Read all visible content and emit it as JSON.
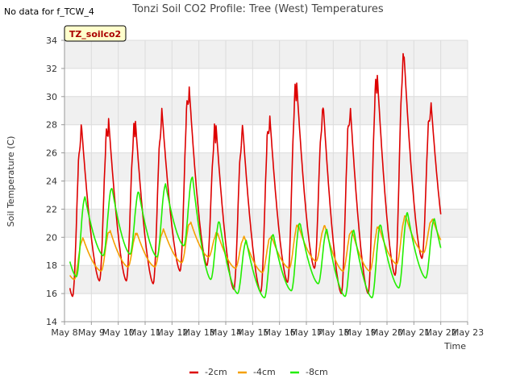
{
  "chart_data": {
    "type": "line",
    "title": "Tonzi Soil CO2 Profile: Tree (West) Temperatures",
    "no_data_note": "No data for f_TCW_4",
    "site_label": "TZ_soilco2",
    "xlabel": "Time",
    "ylabel": "Soil Temperature (C)",
    "xlim": [
      8,
      23
    ],
    "ylim": [
      14,
      34
    ],
    "x_ticks": [
      8,
      9,
      10,
      11,
      12,
      13,
      14,
      15,
      16,
      17,
      18,
      19,
      20,
      21,
      22,
      23
    ],
    "x_tick_labels": [
      "May 8",
      "May 9",
      "May 10",
      "May 11",
      "May 12",
      "May 13",
      "May 14",
      "May 15",
      "May 16",
      "May 17",
      "May 18",
      "May 19",
      "May 20",
      "May 21",
      "May 22",
      "May 23"
    ],
    "y_ticks": [
      14,
      16,
      18,
      20,
      22,
      24,
      26,
      28,
      30,
      32,
      34
    ],
    "y_tick_labels": [
      "14",
      "16",
      "18",
      "20",
      "22",
      "24",
      "26",
      "28",
      "30",
      "32",
      "34"
    ],
    "grid": true,
    "legend_position": "bottom",
    "series": [
      {
        "name": "-2cm",
        "color": "#dd0000",
        "days": [
          {
            "min": 15.8,
            "max": 28.3
          },
          {
            "min": 16.9,
            "max": 29.0
          },
          {
            "min": 16.9,
            "max": 28.8
          },
          {
            "min": 16.7,
            "max": 29.2
          },
          {
            "min": 17.6,
            "max": 31.3
          },
          {
            "min": 18.0,
            "max": 28.5
          },
          {
            "min": 16.3,
            "max": 28.2
          },
          {
            "min": 16.1,
            "max": 29.2
          },
          {
            "min": 16.8,
            "max": 31.6
          },
          {
            "min": 17.8,
            "max": 29.7
          },
          {
            "min": 16.0,
            "max": 29.8
          },
          {
            "min": 16.0,
            "max": 32.2
          },
          {
            "min": 17.3,
            "max": 33.5
          },
          {
            "min": 18.5,
            "max": 30.1
          }
        ]
      },
      {
        "name": "-4cm",
        "color": "#f5a000",
        "days": [
          {
            "min": 17.0,
            "max": 20.0
          },
          {
            "min": 17.6,
            "max": 20.6
          },
          {
            "min": 17.9,
            "max": 20.4
          },
          {
            "min": 17.9,
            "max": 20.6
          },
          {
            "min": 18.2,
            "max": 21.2
          },
          {
            "min": 18.6,
            "max": 20.4
          },
          {
            "min": 17.8,
            "max": 20.1
          },
          {
            "min": 17.5,
            "max": 20.2
          },
          {
            "min": 17.8,
            "max": 21.0
          },
          {
            "min": 18.3,
            "max": 20.9
          },
          {
            "min": 17.6,
            "max": 20.6
          },
          {
            "min": 17.6,
            "max": 20.9
          },
          {
            "min": 18.1,
            "max": 21.6
          },
          {
            "min": 18.9,
            "max": 21.4
          }
        ]
      },
      {
        "name": "-8cm",
        "color": "#22ee00",
        "days": [
          {
            "min": 17.2,
            "max": 22.9
          },
          {
            "min": 18.7,
            "max": 23.6
          },
          {
            "min": 18.8,
            "max": 23.3
          },
          {
            "min": 18.6,
            "max": 23.8
          },
          {
            "min": 19.4,
            "max": 24.4
          },
          {
            "min": 17.0,
            "max": 21.2
          },
          {
            "min": 16.0,
            "max": 19.8
          },
          {
            "min": 15.7,
            "max": 20.3
          },
          {
            "min": 16.2,
            "max": 21.1
          },
          {
            "min": 16.7,
            "max": 20.6
          },
          {
            "min": 15.8,
            "max": 20.6
          },
          {
            "min": 15.7,
            "max": 21.0
          },
          {
            "min": 16.4,
            "max": 21.8
          },
          {
            "min": 17.1,
            "max": 21.4
          }
        ]
      }
    ]
  }
}
